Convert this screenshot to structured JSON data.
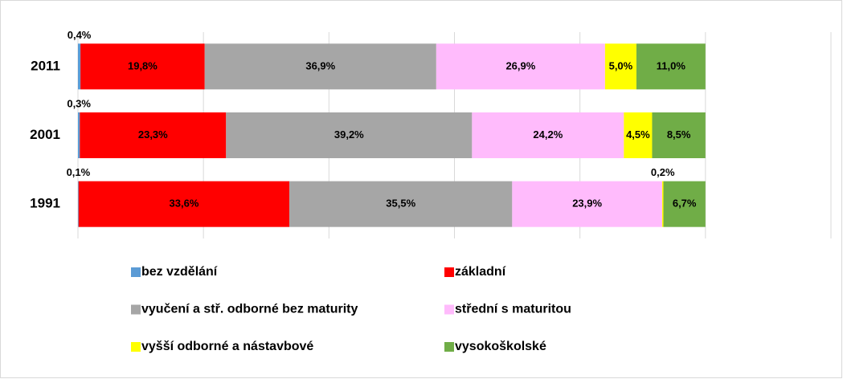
{
  "chart_data": {
    "type": "stacked_bar_horizontal",
    "categories": [
      "2011",
      "2001",
      "1991"
    ],
    "series": [
      {
        "name": "bez vzdělání",
        "color": "#5b9bd5",
        "values": [
          0.4,
          0.3,
          0.1
        ],
        "value_labels": [
          "0,4%",
          "0,3%",
          "0,1%"
        ]
      },
      {
        "name": "základní",
        "color": "#ff0000",
        "values": [
          19.8,
          23.3,
          33.6
        ],
        "value_labels": [
          "19,8%",
          "23,3%",
          "33,6%"
        ]
      },
      {
        "name": "vyučení a stř. odborné bez maturity",
        "color": "#a6a6a6",
        "values": [
          36.9,
          39.2,
          35.5
        ],
        "value_labels": [
          "36,9%",
          "39,2%",
          "35,5%"
        ]
      },
      {
        "name": "střední s maturitou",
        "color": "#ffbbfc",
        "values": [
          26.9,
          24.2,
          23.9
        ],
        "value_labels": [
          "26,9%",
          "24,2%",
          "23,9%"
        ]
      },
      {
        "name": "vyšší odborné a nástavbové",
        "color": "#ffff00",
        "values": [
          5.0,
          4.5,
          0.2
        ],
        "value_labels": [
          "5,0%",
          "4,5%",
          "0,2%"
        ]
      },
      {
        "name": "vysokoškolské",
        "color": "#70ad47",
        "values": [
          11.0,
          8.5,
          6.7
        ],
        "value_labels": [
          "11,0%",
          "8,5%",
          "6,7%"
        ]
      }
    ],
    "xlim": [
      0,
      120
    ],
    "xticks": [
      0,
      20,
      40,
      60,
      80,
      100,
      120
    ],
    "grid": true
  }
}
